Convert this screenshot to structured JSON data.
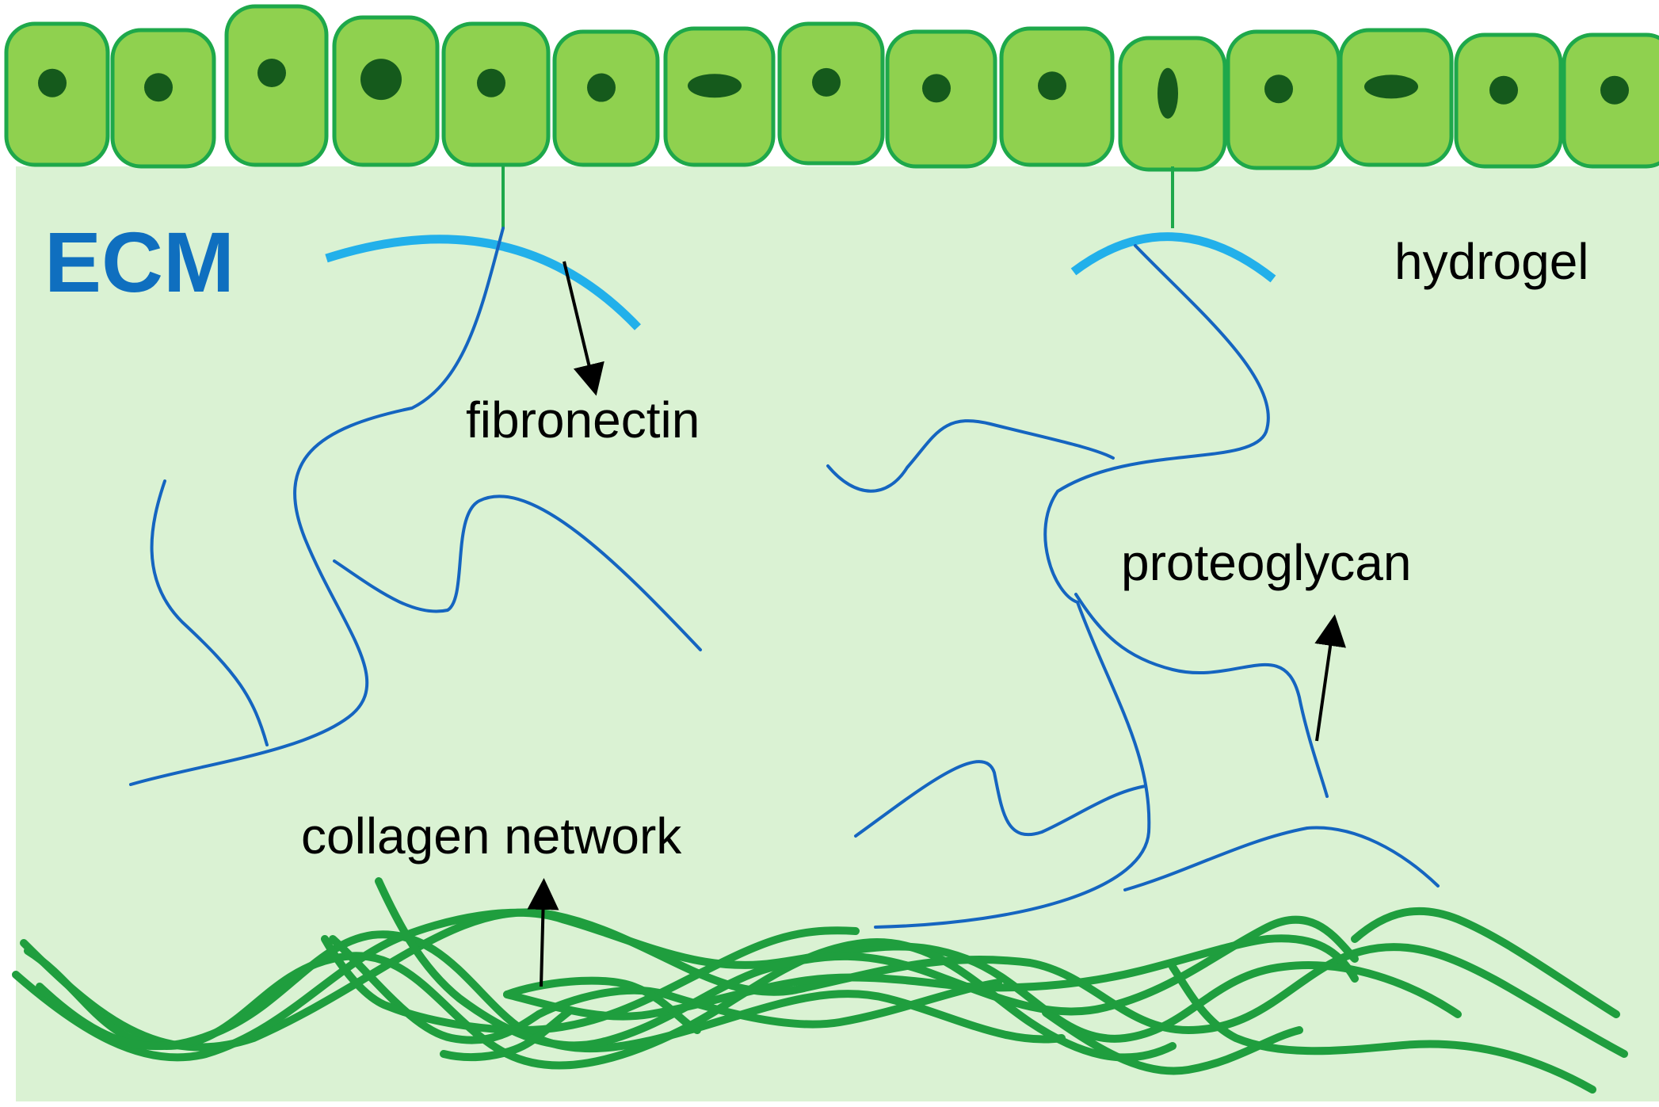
{
  "labels": {
    "ecm": "ECM",
    "hydrogel": "hydrogel",
    "fibronectin": "fibronectin",
    "proteoglycan": "proteoglycan",
    "collagen_network": "collagen network"
  },
  "colors": {
    "background": "#daf2d3",
    "cell_fill": "#8fd14f",
    "cell_stroke": "#1ea84a",
    "nucleus": "#155a1c",
    "ecm_text": "#0f6fbf",
    "fibronectin": "#22b0ea",
    "proteoglycan_fiber": "#1565c0",
    "collagen": "#1f9e3e",
    "arrow": "#000000"
  },
  "icons": {
    "cell": "epithelial-cell-shape",
    "arrow": "black-arrow"
  }
}
